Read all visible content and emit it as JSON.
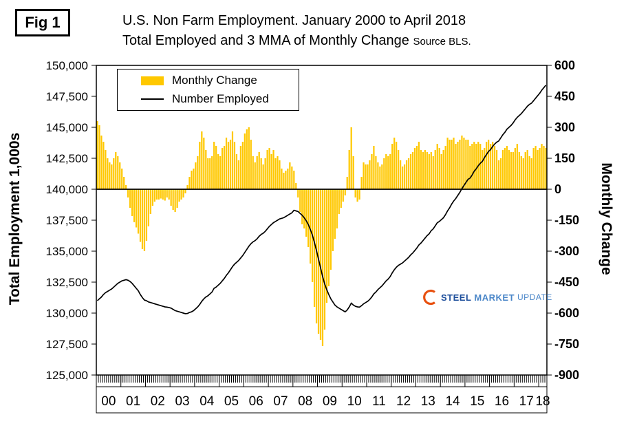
{
  "figure": {
    "fig_label": "Fig 1",
    "title_line1": "U.S. Non Farm Employment. January 2000 to April 2018",
    "title_line2": "Total Employed and 3 MMA of Monthly Change",
    "source_label": "Source BLS."
  },
  "legend": {
    "items": [
      {
        "label": "Monthly Change",
        "marker": "bar",
        "color": "#FFC800"
      },
      {
        "label": "Number Employed",
        "marker": "line",
        "color": "#000000"
      }
    ]
  },
  "left_axis": {
    "title": "Total Employment 1,000s",
    "min": 125000,
    "max": 150000,
    "step": 2500,
    "tick_labels": [
      "150,000",
      "147,500",
      "145,000",
      "142,500",
      "140,000",
      "137,500",
      "135,000",
      "132,500",
      "130,000",
      "127,500",
      "125,000"
    ]
  },
  "right_axis": {
    "title": "Monthly Change",
    "min": -900,
    "max": 600,
    "step": 150,
    "tick_labels": [
      "600",
      "450",
      "300",
      "150",
      "0",
      "-150",
      "-300",
      "-450",
      "-600",
      "-750",
      "-900"
    ]
  },
  "x_axis": {
    "year_labels": [
      "00",
      "01",
      "02",
      "03",
      "04",
      "05",
      "06",
      "07",
      "08",
      "09",
      "10",
      "11",
      "12",
      "13",
      "14",
      "15",
      "16",
      "17",
      "18"
    ]
  },
  "logo": {
    "word1": "STEEL",
    "word2": "MARKET",
    "word3": "UPDATE",
    "text_color_primary": "#1D4E9B",
    "text_color_secondary": "#4A86C8",
    "swoosh_color": "#E8500F"
  },
  "chart_data": {
    "type": "bar+line",
    "title": "U.S. Non Farm Employment. January 2000 to April 2018 — Total Employed and 3 MMA of Monthly Change",
    "frequency": "monthly",
    "start": "2000-01",
    "end": "2018-04",
    "categories_years": [
      "00",
      "01",
      "02",
      "03",
      "04",
      "05",
      "06",
      "07",
      "08",
      "09",
      "10",
      "11",
      "12",
      "13",
      "14",
      "15",
      "16",
      "17",
      "18"
    ],
    "left_ylabel": "Total Employment 1,000s",
    "right_ylabel": "Monthly Change",
    "left_ylim": [
      125000,
      150000
    ],
    "right_ylim": [
      -900,
      600
    ],
    "grid": false,
    "legend_position": "top-left-inside",
    "series": [
      {
        "name": "Monthly Change",
        "type": "bar",
        "axis": "right",
        "color": "#FFC800",
        "values": [
          330,
          310,
          260,
          230,
          190,
          150,
          130,
          120,
          150,
          180,
          160,
          130,
          100,
          60,
          20,
          -40,
          -90,
          -130,
          -160,
          -185,
          -215,
          -255,
          -290,
          -300,
          -250,
          -180,
          -120,
          -80,
          -60,
          -50,
          -50,
          -45,
          -50,
          -55,
          -40,
          -50,
          -80,
          -100,
          -110,
          -90,
          -60,
          -50,
          -40,
          -20,
          20,
          60,
          90,
          100,
          130,
          160,
          230,
          280,
          250,
          190,
          150,
          150,
          160,
          230,
          210,
          170,
          160,
          200,
          210,
          250,
          230,
          240,
          280,
          230,
          170,
          140,
          210,
          230,
          270,
          290,
          300,
          240,
          160,
          130,
          160,
          180,
          150,
          120,
          150,
          190,
          200,
          170,
          190,
          150,
          160,
          140,
          100,
          80,
          90,
          100,
          130,
          110,
          90,
          30,
          -40,
          -110,
          -170,
          -190,
          -230,
          -280,
          -360,
          -450,
          -570,
          -650,
          -700,
          -730,
          -760,
          -680,
          -550,
          -470,
          -390,
          -300,
          -240,
          -190,
          -120,
          -90,
          -60,
          -30,
          60,
          190,
          300,
          160,
          -40,
          -60,
          -50,
          60,
          130,
          120,
          120,
          140,
          170,
          210,
          160,
          130,
          110,
          120,
          150,
          170,
          160,
          170,
          220,
          250,
          230,
          190,
          140,
          110,
          120,
          140,
          150,
          170,
          180,
          200,
          210,
          230,
          190,
          180,
          190,
          180,
          170,
          180,
          160,
          190,
          220,
          200,
          170,
          190,
          210,
          250,
          240,
          240,
          250,
          220,
          230,
          240,
          260,
          250,
          240,
          240,
          210,
          220,
          230,
          220,
          230,
          220,
          190,
          200,
          230,
          240,
          220,
          230,
          210,
          190,
          140,
          150,
          190,
          200,
          210,
          190,
          180,
          180,
          200,
          220,
          180,
          160,
          150,
          180,
          190,
          160,
          150,
          200,
          210,
          190,
          200,
          220,
          210,
          200
        ]
      },
      {
        "name": "Number Employed",
        "type": "line",
        "axis": "left",
        "color": "#000000",
        "values": [
          131000,
          131150,
          131300,
          131500,
          131650,
          131750,
          131850,
          131950,
          132100,
          132250,
          132400,
          132500,
          132600,
          132650,
          132700,
          132650,
          132550,
          132400,
          132200,
          132000,
          131800,
          131500,
          131250,
          131050,
          131000,
          130900,
          130850,
          130800,
          130750,
          130700,
          130650,
          130600,
          130550,
          130500,
          130480,
          130450,
          130400,
          130300,
          130200,
          130150,
          130100,
          130050,
          130000,
          129950,
          129970,
          130050,
          130100,
          130200,
          130350,
          130500,
          130700,
          130950,
          131150,
          131300,
          131400,
          131550,
          131700,
          132000,
          132100,
          132250,
          132400,
          132600,
          132800,
          133050,
          133250,
          133500,
          133750,
          133950,
          134100,
          134250,
          134450,
          134650,
          134900,
          135150,
          135400,
          135600,
          135750,
          135850,
          136000,
          136200,
          136350,
          136450,
          136600,
          136800,
          137000,
          137150,
          137300,
          137400,
          137500,
          137600,
          137650,
          137700,
          137800,
          137900,
          138000,
          138100,
          138300,
          138250,
          138200,
          138050,
          137900,
          137700,
          137450,
          137150,
          136750,
          136300,
          135700,
          135050,
          134350,
          133650,
          132950,
          132350,
          131900,
          131500,
          131150,
          130900,
          130650,
          130500,
          130400,
          130300,
          130200,
          130100,
          130250,
          130500,
          130800,
          130650,
          130550,
          130500,
          130480,
          130600,
          130750,
          130850,
          130950,
          131100,
          131300,
          131550,
          131700,
          131900,
          132050,
          132200,
          132400,
          132600,
          132750,
          132950,
          133250,
          133500,
          133700,
          133850,
          133950,
          134050,
          134200,
          134350,
          134500,
          134700,
          134850,
          135050,
          135250,
          135500,
          135650,
          135850,
          136050,
          136250,
          136400,
          136650,
          136800,
          137050,
          137300,
          137400,
          137550,
          137700,
          137950,
          138250,
          138500,
          138800,
          139050,
          139250,
          139500,
          139750,
          140050,
          140300,
          140550,
          140800,
          140900,
          141150,
          141450,
          141650,
          141900,
          142100,
          142250,
          142550,
          142800,
          143050,
          143200,
          143450,
          143650,
          143800,
          143900,
          144150,
          144400,
          144600,
          144850,
          145000,
          145150,
          145350,
          145600,
          145800,
          145950,
          146100,
          146300,
          146500,
          146700,
          146850,
          146950,
          147150,
          147350,
          147550,
          147750,
          148000,
          148200,
          148400
        ]
      }
    ]
  }
}
